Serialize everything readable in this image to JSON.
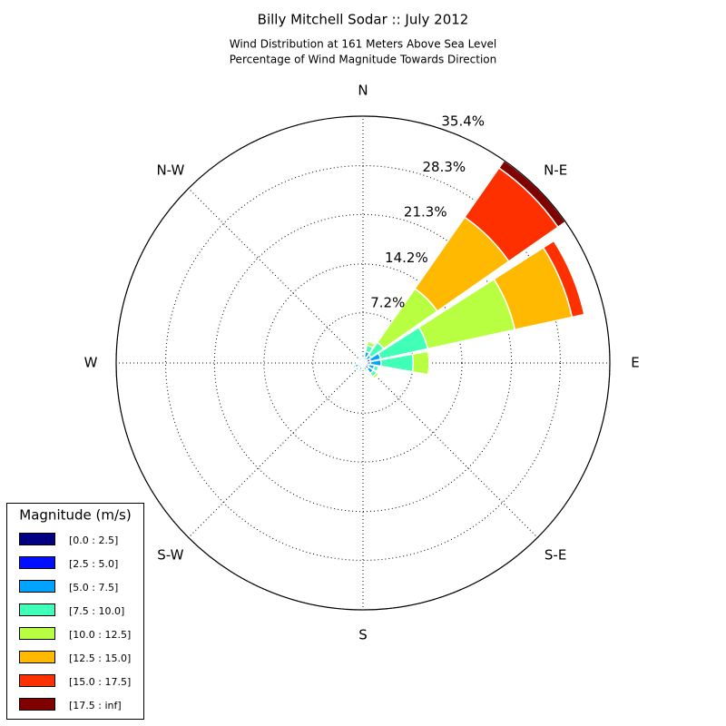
{
  "chart_data": {
    "type": "windrose",
    "title": "Billy Mitchell Sodar :: July 2012",
    "subtitle": [
      "Wind Distribution at 161 Meters Above Sea Level",
      "Percentage of Wind Magnitude Towards Direction"
    ],
    "legend_title": "Magnitude (m/s)",
    "legend_position": "lower left",
    "categories": [
      "N",
      null,
      "N-E",
      null,
      "E",
      null,
      "S-E",
      null,
      "S",
      null,
      "S-W",
      null,
      "W",
      null,
      "N-W",
      null
    ],
    "rlim": [
      0,
      35.4
    ],
    "rticks": [
      {
        "value": 7.2,
        "label": "7.2%"
      },
      {
        "value": 14.2,
        "label": "14.2%"
      },
      {
        "value": 21.3,
        "label": "21.3%"
      },
      {
        "value": 28.3,
        "label": "28.3%"
      },
      {
        "value": 35.4,
        "label": "35.4%"
      }
    ],
    "grid": true,
    "series": [
      {
        "name": "[0.0 : 2.5]",
        "color": "#000080",
        "values": [
          0.3,
          0.3,
          0.2,
          0.3,
          0.3,
          0.3,
          0.3,
          0.2,
          0.2,
          0.2,
          0.2,
          0.2,
          0.2,
          0.1,
          0.1,
          0.2
        ]
      },
      {
        "name": "[2.5 : 5.0]",
        "color": "#0010ff",
        "values": [
          0.5,
          0.6,
          0.4,
          0.8,
          0.8,
          0.6,
          0.7,
          0.4,
          0.3,
          0.4,
          0.3,
          0.5,
          0.3,
          0.2,
          0.2,
          0.3
        ]
      },
      {
        "name": "[5.0 : 7.5]",
        "color": "#00a4ff",
        "values": [
          0.4,
          0.8,
          0.8,
          1.5,
          1.5,
          0.8,
          0.8,
          0.4,
          0.3,
          0.4,
          0.3,
          0.5,
          0.3,
          0.2,
          0.2,
          0.3
        ]
      },
      {
        "name": "[7.5 : 10.0]",
        "color": "#40ffb7",
        "values": [
          0.2,
          0.9,
          2.2,
          6.9,
          4.6,
          0.6,
          0.6,
          0.3,
          0.2,
          0.3,
          0.2,
          0.3,
          0.2,
          0,
          0,
          0.2
        ]
      },
      {
        "name": "[10.0 : 12.5]",
        "color": "#b7ff40",
        "values": [
          0,
          0.6,
          9.4,
          12.8,
          2.3,
          0,
          0.4,
          0.2,
          0,
          0.1,
          0,
          0,
          0,
          0,
          0,
          0
        ]
      },
      {
        "name": "[12.5 : 15.0]",
        "color": "#ffb900",
        "values": [
          0,
          0,
          12.5,
          8.4,
          0,
          0,
          0,
          0,
          0,
          0.2,
          0,
          0,
          0,
          0,
          0,
          0
        ]
      },
      {
        "name": "[15.0 : 17.5]",
        "color": "#ff3000",
        "values": [
          0,
          0,
          8.6,
          1.8,
          0,
          0,
          0,
          0,
          0,
          0.1,
          0,
          0,
          0,
          0,
          0,
          0
        ]
      },
      {
        "name": "[17.5 : inf]",
        "color": "#800000",
        "values": [
          0,
          0,
          1.3,
          0,
          0,
          0,
          0,
          0,
          0,
          0,
          0,
          0,
          0,
          0,
          0,
          0
        ]
      }
    ]
  }
}
